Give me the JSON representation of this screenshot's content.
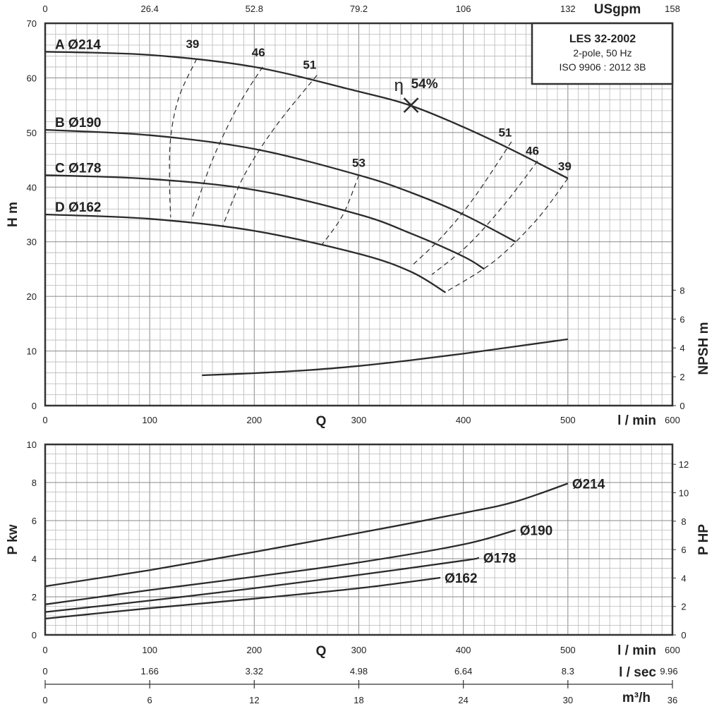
{
  "chart_data": [
    {
      "type": "line",
      "panel": "head",
      "legend_box": {
        "model": "LES 32-2002",
        "line2": "2-pole, 50 Hz",
        "line3": "ISO 9906 : 2012 3B",
        "placement": "top-right"
      },
      "x_units_label": "l / min",
      "x_symbol": "Q",
      "xlim": [
        0,
        600
      ],
      "x_ticks": [
        "0",
        "100",
        "200",
        "300",
        "400",
        "500",
        "600"
      ],
      "top_axis_unit": "USgpm",
      "top_ticks": [
        "0",
        "26.4",
        "52.8",
        "79.2",
        "106",
        "132",
        "158"
      ],
      "ylabel": "H m",
      "ylim": [
        0,
        70
      ],
      "y_ticks": [
        "0",
        "10",
        "20",
        "30",
        "40",
        "50",
        "60",
        "70"
      ],
      "right_axis_label": "NPSH m",
      "right_ticks": [
        "0",
        "2",
        "4",
        "6",
        "8"
      ],
      "grid": true,
      "series": [
        {
          "name": "A Ø214",
          "x": [
            0,
            100,
            200,
            300,
            350,
            400,
            450,
            500
          ],
          "y": [
            64.8,
            64.2,
            62.0,
            57.5,
            54.9,
            51.0,
            46.5,
            41.6
          ]
        },
        {
          "name": "B Ø190",
          "x": [
            0,
            100,
            200,
            300,
            350,
            400,
            450
          ],
          "y": [
            50.5,
            49.5,
            47.0,
            42.2,
            39.0,
            35.0,
            30.0
          ]
        },
        {
          "name": "C Ø178",
          "x": [
            0,
            100,
            200,
            300,
            350,
            400,
            420
          ],
          "y": [
            42.2,
            41.5,
            39.5,
            35.0,
            31.5,
            27.3,
            25.0
          ]
        },
        {
          "name": "D Ø162",
          "x": [
            0,
            100,
            200,
            300,
            350,
            383
          ],
          "y": [
            35.0,
            34.2,
            32.0,
            27.8,
            24.5,
            20.7
          ]
        }
      ],
      "npsh": {
        "x": [
          150,
          200,
          250,
          300,
          350,
          400,
          450,
          500
        ],
        "y": [
          2.1,
          2.25,
          2.45,
          2.75,
          3.15,
          3.6,
          4.1,
          4.6
        ]
      },
      "efficiency_iso_lines": [
        {
          "label": "39",
          "x": [
            145,
            128,
            120,
            119,
            120
          ],
          "y": [
            63.5,
            56.5,
            49.0,
            41.0,
            34.5
          ]
        },
        {
          "label": "46",
          "x": [
            208,
            185,
            160,
            140
          ],
          "y": [
            62.0,
            55.0,
            45.0,
            34.0
          ]
        },
        {
          "label": "51",
          "x": [
            260,
            220,
            190,
            170
          ],
          "y": [
            60.5,
            51.0,
            42.0,
            33.0
          ]
        },
        {
          "label": "53",
          "x": [
            300,
            285,
            265
          ],
          "y": [
            42.2,
            35.0,
            29.5
          ]
        },
        {
          "label": "51",
          "x": [
            446,
            410,
            380,
            350
          ],
          "y": [
            48.3,
            38.0,
            31.0,
            25.5
          ]
        },
        {
          "label": "46",
          "x": [
            471,
            440,
            405,
            370
          ],
          "y": [
            44.8,
            37.0,
            29.5,
            24.0
          ]
        },
        {
          "label": "39",
          "x": [
            500,
            470,
            430,
            385
          ],
          "y": [
            41.6,
            34.0,
            26.5,
            21.0
          ]
        }
      ],
      "efficiency_label_positions": [
        {
          "label": "39",
          "x": 141,
          "y": 65.5
        },
        {
          "label": "46",
          "x": 204,
          "y": 63.9
        },
        {
          "label": "51",
          "x": 253,
          "y": 61.7
        },
        {
          "label": "53",
          "x": 300,
          "y": 43.7
        },
        {
          "label": "51",
          "x": 440,
          "y": 49.3
        },
        {
          "label": "46",
          "x": 466,
          "y": 45.9
        },
        {
          "label": "39",
          "x": 497,
          "y": 43.1
        }
      ],
      "bep": {
        "label": "η",
        "value_label": "54%",
        "x": 350,
        "y": 55.0
      }
    },
    {
      "type": "line",
      "panel": "power",
      "x_units_label": "l / min",
      "x_symbol": "Q",
      "xlim": [
        0,
        600
      ],
      "x_ticks": [
        "0",
        "100",
        "200",
        "300",
        "400",
        "500",
        "600"
      ],
      "ylabel": "P kw",
      "ylim": [
        0,
        10
      ],
      "y_ticks": [
        "0",
        "2",
        "4",
        "6",
        "8",
        "10"
      ],
      "right_axis_label": "P HP",
      "right_ticks": [
        "0",
        "2",
        "4",
        "6",
        "8",
        "10",
        "12"
      ],
      "grid": true,
      "series": [
        {
          "name": "Ø214",
          "x": [
            0,
            100,
            200,
            300,
            400,
            450,
            500
          ],
          "y": [
            2.55,
            3.4,
            4.35,
            5.35,
            6.4,
            7.0,
            7.95
          ]
        },
        {
          "name": "Ø190",
          "x": [
            0,
            100,
            200,
            300,
            400,
            450
          ],
          "y": [
            1.6,
            2.35,
            3.05,
            3.8,
            4.75,
            5.5
          ]
        },
        {
          "name": "Ø178",
          "x": [
            0,
            100,
            200,
            300,
            400,
            415
          ],
          "y": [
            1.2,
            1.8,
            2.45,
            3.15,
            3.9,
            4.05
          ]
        },
        {
          "name": "Ø162",
          "x": [
            0,
            100,
            200,
            300,
            378
          ],
          "y": [
            0.85,
            1.4,
            1.9,
            2.45,
            3.0
          ]
        }
      ]
    }
  ],
  "extra_axes": [
    {
      "unit": "l / sec",
      "ticks": [
        "0",
        "1.66",
        "3.32",
        "4.98",
        "6.64",
        "8.3",
        "9.96"
      ]
    },
    {
      "unit": "m³/h",
      "ticks": [
        "0",
        "6",
        "12",
        "18",
        "24",
        "30",
        "36"
      ]
    }
  ]
}
